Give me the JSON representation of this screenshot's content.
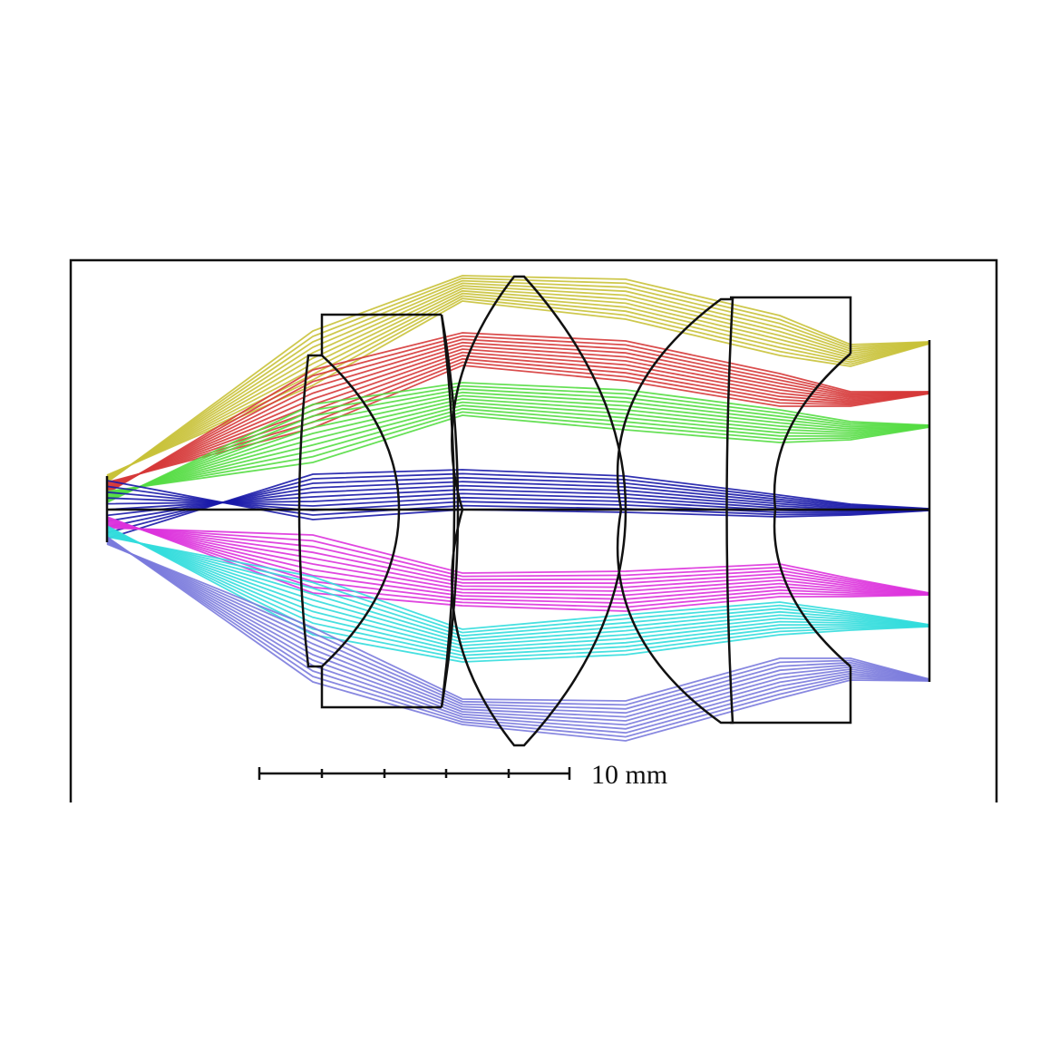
{
  "scale_bar": {
    "label": "10 mm"
  }
}
